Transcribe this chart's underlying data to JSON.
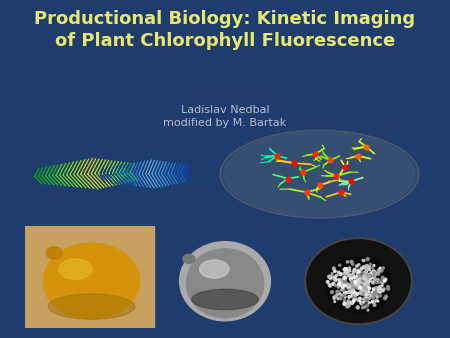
{
  "background_color": "#1e3d6e",
  "title_line1": "Productional Biology: Kinetic Imaging",
  "title_line2": "of Plant Chlorophyll Fluorescence",
  "subtitle_line1": "Ladislav Nedbal",
  "subtitle_line2": "modified by M. Bartak",
  "title_color": "#e8e870",
  "subtitle_color": "#b8bcd0",
  "title_fontsize": 13,
  "subtitle_fontsize": 8,
  "figsize": [
    4.5,
    3.38
  ],
  "dpi": 100,
  "panel_bg": "#000000",
  "panel_border": "#334466"
}
